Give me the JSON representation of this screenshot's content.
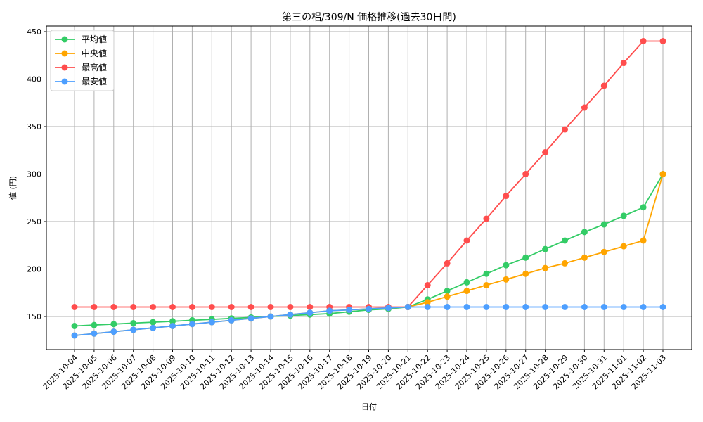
{
  "chart_data": {
    "type": "line",
    "title": "第三の梠/309/N 価格推移(過去30日間)",
    "xlabel": "日付",
    "ylabel": "値 (円)",
    "ylim": [
      115,
      455
    ],
    "yticks": [
      150,
      200,
      250,
      300,
      350,
      400,
      450
    ],
    "grid": true,
    "legend_position": "upper left",
    "categories": [
      "2025-10-04",
      "2025-10-05",
      "2025-10-06",
      "2025-10-07",
      "2025-10-08",
      "2025-10-09",
      "2025-10-10",
      "2025-10-11",
      "2025-10-12",
      "2025-10-13",
      "2025-10-14",
      "2025-10-15",
      "2025-10-16",
      "2025-10-17",
      "2025-10-18",
      "2025-10-19",
      "2025-10-20",
      "2025-10-21",
      "2025-10-22",
      "2025-10-23",
      "2025-10-24",
      "2025-10-25",
      "2025-10-26",
      "2025-10-27",
      "2025-10-28",
      "2025-10-29",
      "2025-10-30",
      "2025-10-31",
      "2025-11-01",
      "2025-11-02",
      "2025-11-03"
    ],
    "series": [
      {
        "name": "平均値",
        "color": "#33cc66",
        "values": [
          140,
          141,
          142,
          143,
          144,
          145,
          146,
          147,
          148,
          149,
          150,
          151,
          152,
          153,
          155,
          157,
          158,
          160,
          168,
          177,
          186,
          195,
          204,
          212,
          221,
          230,
          239,
          247,
          256,
          265,
          300
        ]
      },
      {
        "name": "中央値",
        "color": "#ffa500",
        "values": [
          130,
          132,
          134,
          136,
          138,
          140,
          142,
          144,
          146,
          148,
          150,
          152,
          154,
          156,
          157,
          158,
          159,
          160,
          165,
          171,
          177,
          183,
          189,
          195,
          201,
          206,
          212,
          218,
          224,
          230,
          300
        ]
      },
      {
        "name": "最高値",
        "color": "#ff4d4d",
        "values": [
          160,
          160,
          160,
          160,
          160,
          160,
          160,
          160,
          160,
          160,
          160,
          160,
          160,
          160,
          160,
          160,
          160,
          160,
          183,
          206,
          230,
          253,
          277,
          300,
          323,
          347,
          370,
          393,
          417,
          440,
          440
        ]
      },
      {
        "name": "最安値",
        "color": "#4d9fff",
        "values": [
          130,
          132,
          134,
          136,
          138,
          140,
          142,
          144,
          146,
          148,
          150,
          152,
          154,
          156,
          157,
          158,
          159,
          160,
          160,
          160,
          160,
          160,
          160,
          160,
          160,
          160,
          160,
          160,
          160,
          160,
          160
        ]
      }
    ]
  }
}
